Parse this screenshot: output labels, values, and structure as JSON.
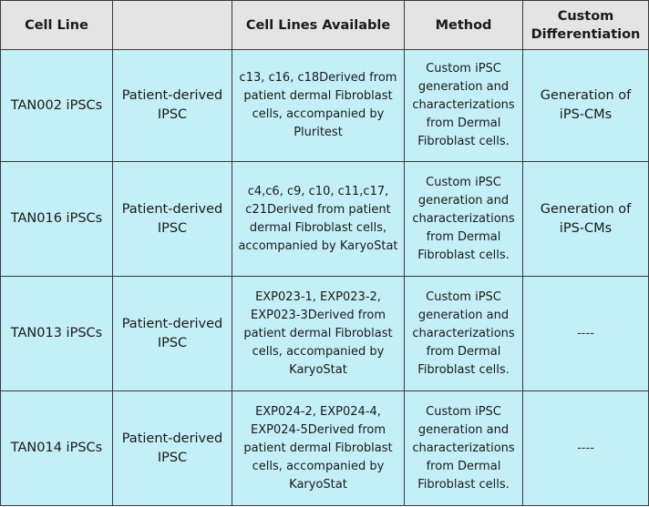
{
  "table": {
    "headers": [
      "Cell Line",
      "",
      "Cell Lines Available",
      "Method",
      "Custom Differentiation"
    ],
    "rows": [
      {
        "cell_line": "TAN002 iPSCs",
        "type": "Patient-derived IPSC",
        "available": "c13, c16, c18Derived from patient dermal Fibroblast cells, accompanied by Pluritest",
        "method": "Custom iPSC generation and characterizations from Dermal Fibroblast cells.",
        "differentiation": "Generation of iPS-CMs"
      },
      {
        "cell_line": "TAN016 iPSCs",
        "type": "Patient-derived IPSC",
        "available": "c4,c6, c9, c10, c11,c17, c21Derived from patient dermal Fibroblast cells, accompanied by KaryoStat",
        "method": "Custom iPSC generation and characterizations from Dermal Fibroblast cells.",
        "differentiation": "Generation of iPS-CMs"
      },
      {
        "cell_line": "TAN013 iPSCs",
        "type": "Patient-derived IPSC",
        "available": "EXP023-1, EXP023-2, EXP023-3Derived from patient dermal Fibroblast cells, accompanied by KaryoStat",
        "method": "Custom iPSC generation and characterizations from Dermal Fibroblast cells.",
        "differentiation": "----"
      },
      {
        "cell_line": "TAN014 iPSCs",
        "type": "Patient-derived IPSC",
        "available": "EXP024-2, EXP024-4, EXP024-5Derived from patient dermal Fibroblast cells, accompanied by KaryoStat",
        "method": "Custom iPSC generation and characterizations from Dermal Fibroblast cells.",
        "differentiation": "----"
      }
    ]
  },
  "colors": {
    "header_bg": "#e4e4e4",
    "cell_bg": "#c4eff7",
    "border": "#3a3a3a"
  }
}
